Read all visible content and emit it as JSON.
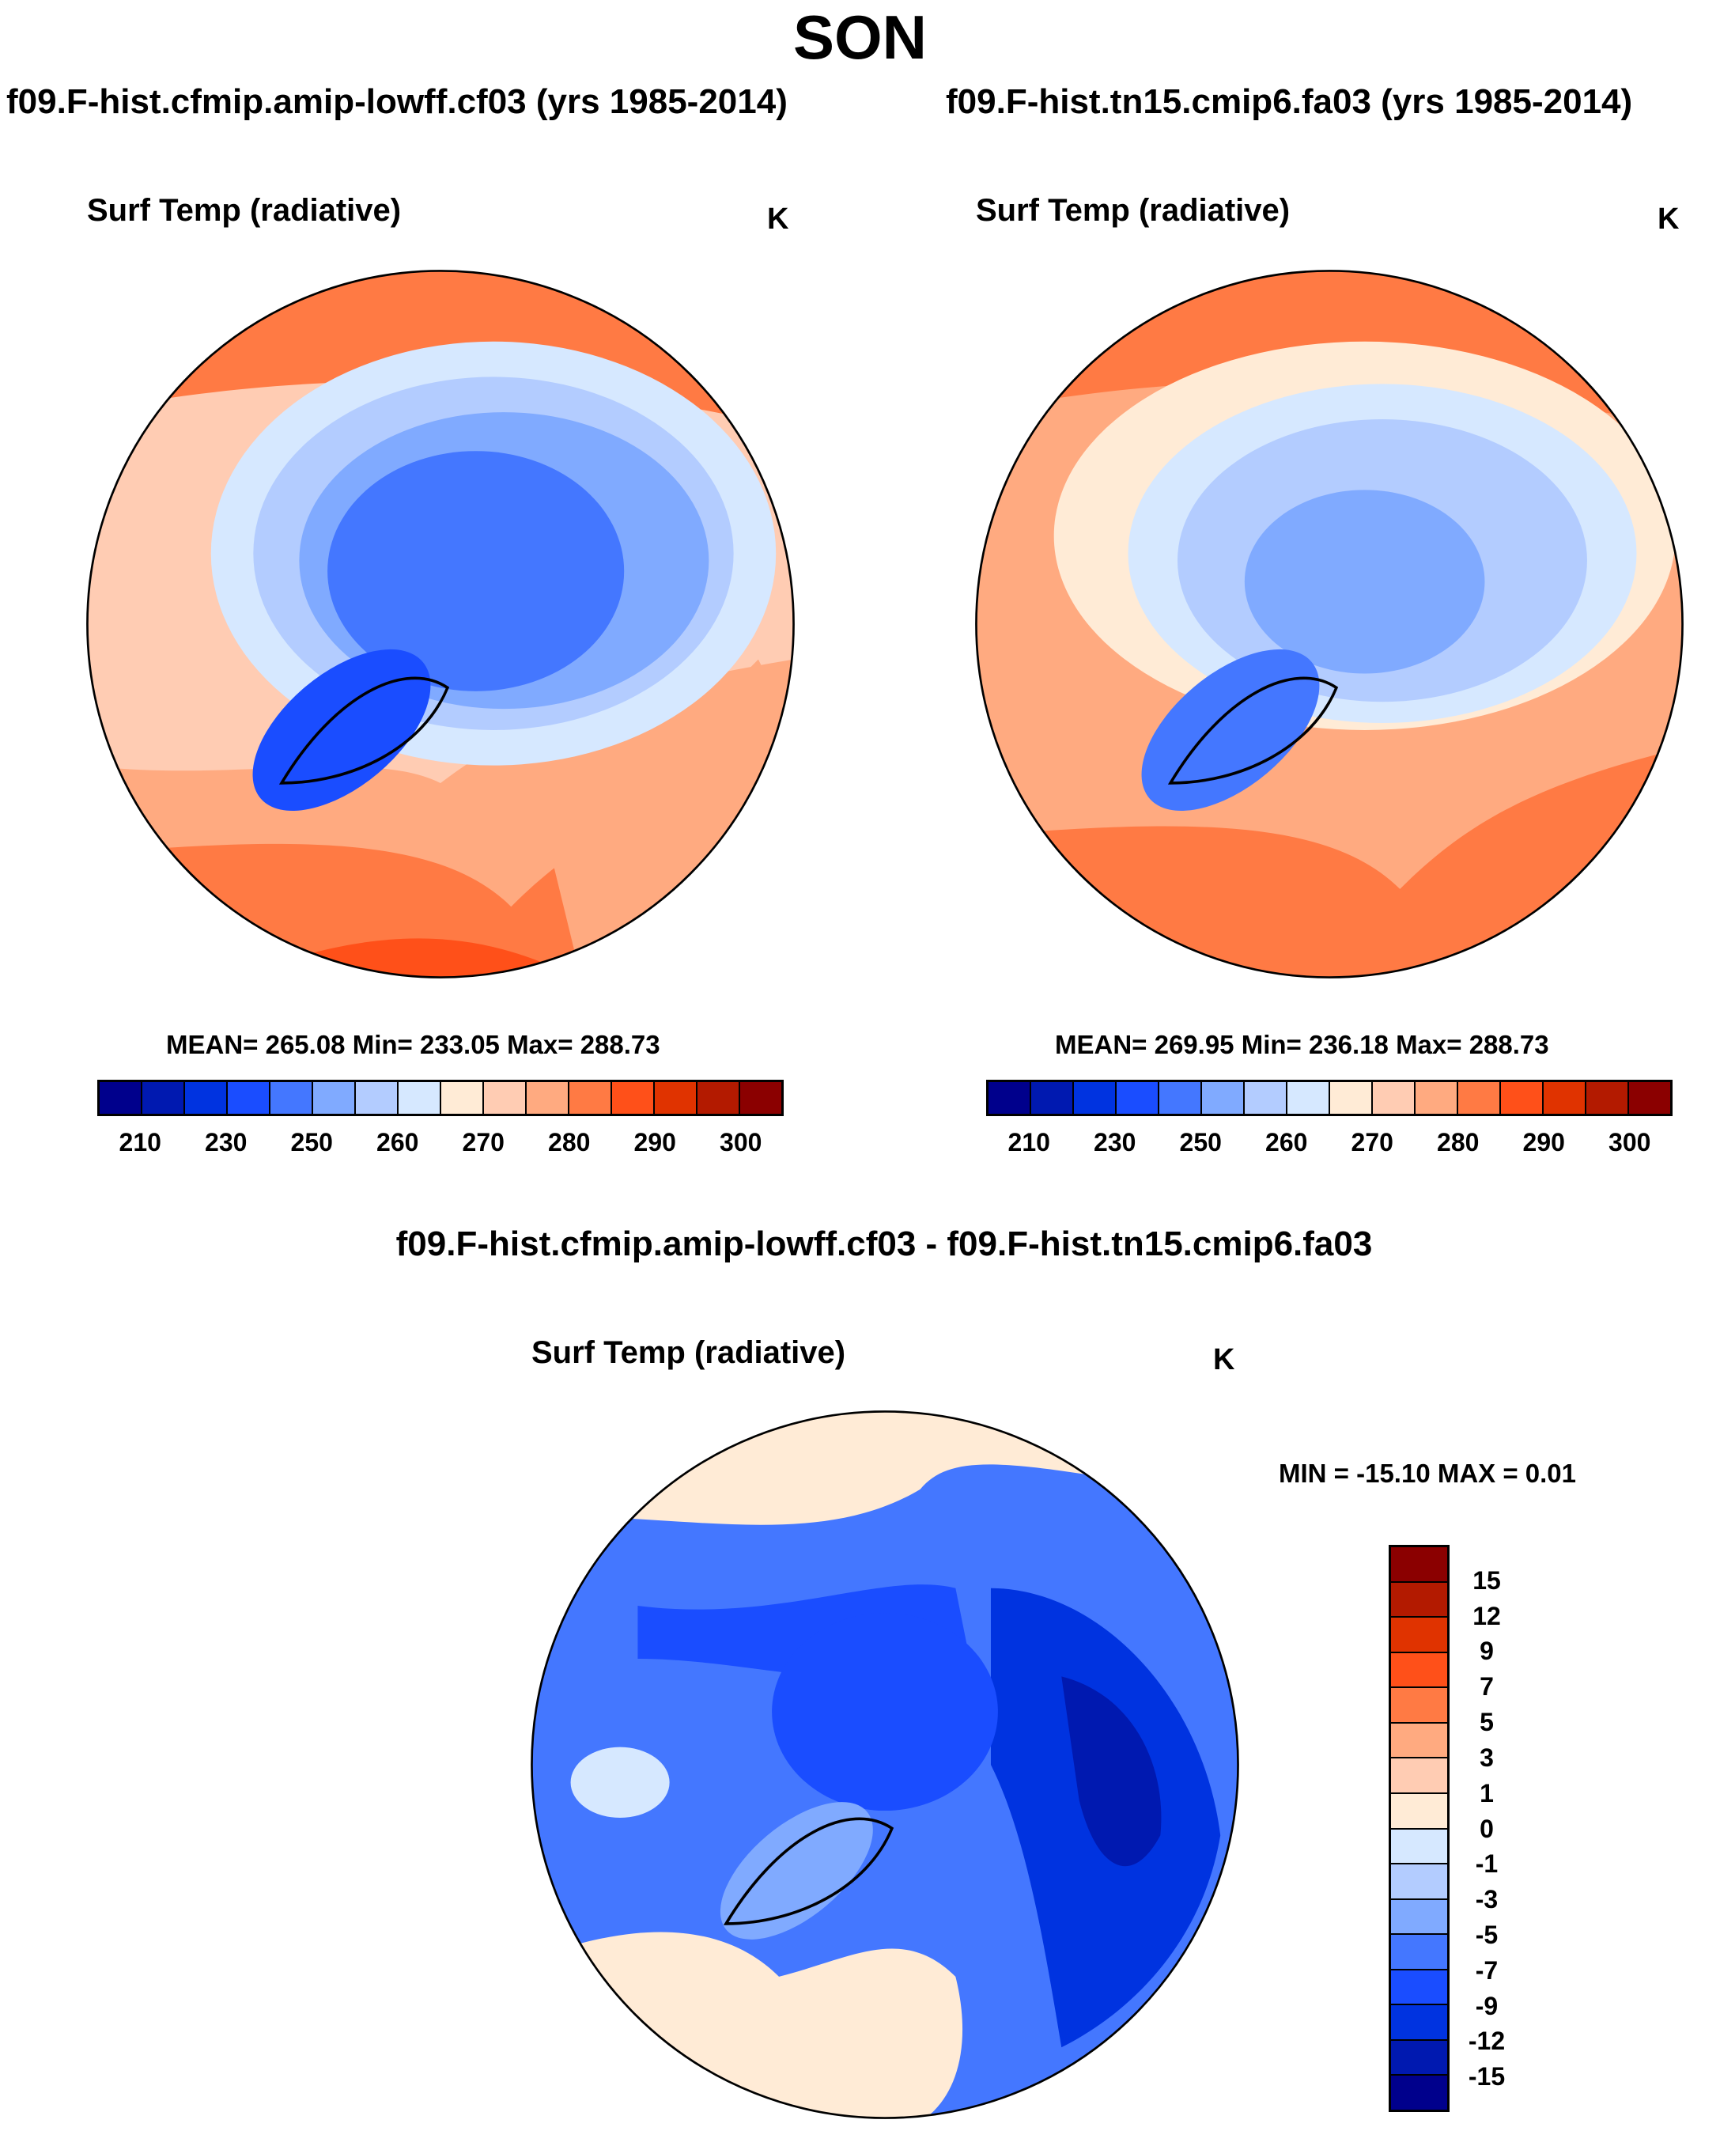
{
  "title": "SON",
  "palette": [
    "#00008C",
    "#0019B0",
    "#0033E0",
    "#1A4DFF",
    "#4477FF",
    "#80AAFF",
    "#B3CCFF",
    "#D6E8FF",
    "#FFEBD6",
    "#FFCCB3",
    "#FFAA80",
    "#FF7A44",
    "#FF5019",
    "#E03300",
    "#B31A00",
    "#8B0000"
  ],
  "chart_data": [
    {
      "type": "heatmap",
      "projection": "north polar stereographic",
      "title": "f09.F-hist.cfmip.amip-lowff.cf03 (yrs 1985-2014)",
      "variable": "Surf Temp (radiative)",
      "units": "K",
      "stats": "MEAN= 265.08  Min= 233.05  Max= 288.73",
      "mean": 265.08,
      "min": 233.05,
      "max": 288.73,
      "colorbar_labels": [
        "210",
        "230",
        "250",
        "260",
        "270",
        "280",
        "290",
        "300"
      ]
    },
    {
      "type": "heatmap",
      "projection": "north polar stereographic",
      "title": "f09.F-hist.tn15.cmip6.fa03 (yrs 1985-2014)",
      "variable": "Surf Temp (radiative)",
      "units": "K",
      "stats": "MEAN= 269.95  Min= 236.18  Max= 288.73",
      "mean": 269.95,
      "min": 236.18,
      "max": 288.73,
      "colorbar_labels": [
        "210",
        "230",
        "250",
        "260",
        "270",
        "280",
        "290",
        "300"
      ]
    },
    {
      "type": "heatmap",
      "projection": "north polar stereographic",
      "title": "f09.F-hist.cfmip.amip-lowff.cf03 - f09.F-hist.tn15.cmip6.fa03",
      "variable": "Surf Temp (radiative)",
      "units": "K",
      "stats": "MIN = -15.10 MAX =   0.01",
      "min": -15.1,
      "max": 0.01,
      "colorbar_labels": [
        "15",
        "12",
        "9",
        "7",
        "5",
        "3",
        "1",
        "0",
        "-1",
        "-3",
        "-5",
        "-7",
        "-9",
        "-12",
        "-15"
      ]
    }
  ]
}
